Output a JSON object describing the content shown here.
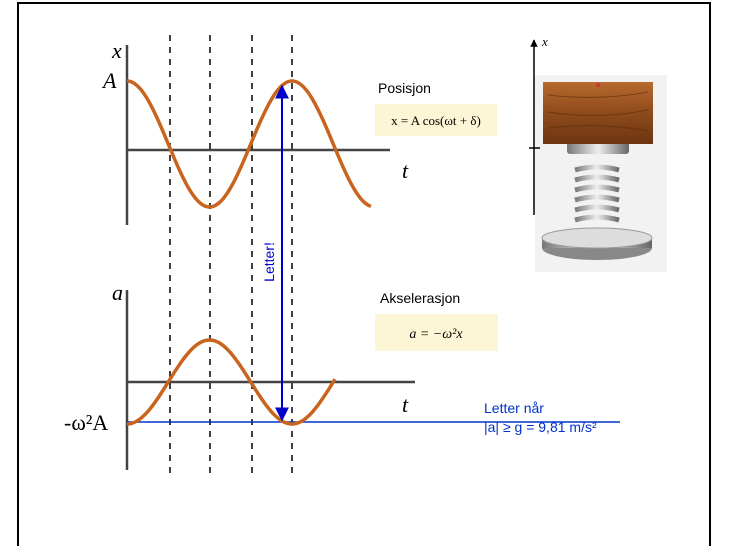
{
  "position_graph": {
    "axis_label": "x",
    "amplitude_label": "A",
    "time_label": "t"
  },
  "position_title": "Posisjon",
  "position_formula": "x = A cos(ωt + δ)",
  "acceleration_graph": {
    "axis_label": "a",
    "amplitude_label": "-ω²A",
    "time_label": "t"
  },
  "acceleration_title": "Akselerasjon",
  "acceleration_formula": "a = −ω²x",
  "arrow_label": "Letter!",
  "note": {
    "line1": "Letter når",
    "line2": "|a| ≥ g = 9,81 m/s²"
  },
  "spring_axis_label": "x"
}
